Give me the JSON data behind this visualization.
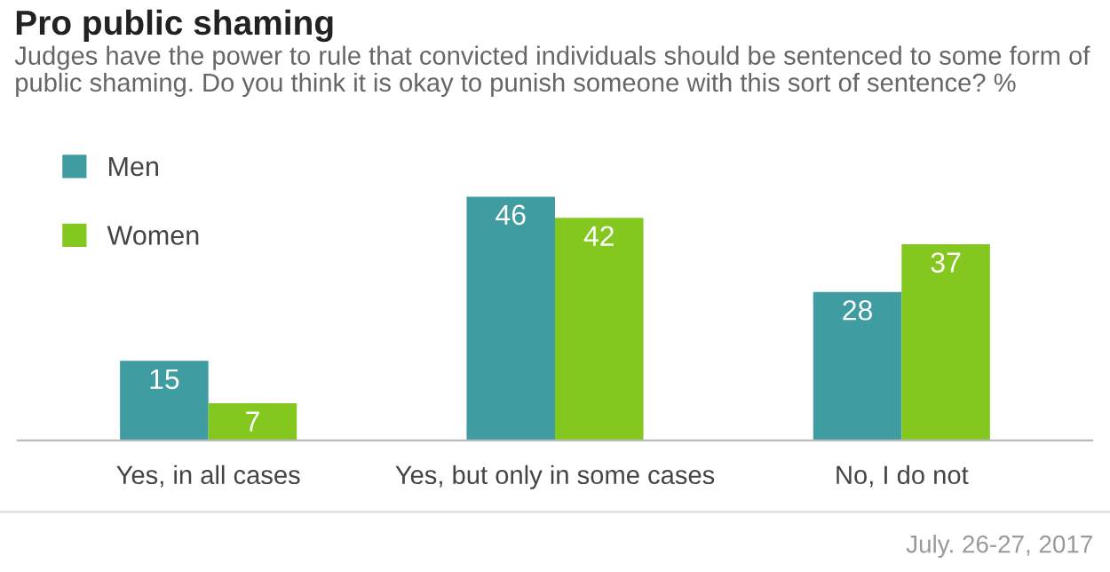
{
  "chart_data": {
    "type": "bar",
    "title": "Pro public shaming",
    "subtitle": "Judges have the power to rule that convicted individuals should be sentenced to some form of public shaming. Do you think it is okay to punish someone with this sort of sentence? %",
    "categories": [
      "Yes, in all cases",
      "Yes, but only in some cases",
      "No, I do not"
    ],
    "series": [
      {
        "name": "Men",
        "color": "#3f9ca1",
        "values": [
          15,
          46,
          28
        ]
      },
      {
        "name": "Women",
        "color": "#84c71f",
        "values": [
          7,
          42,
          37
        ]
      }
    ],
    "data_labels": true,
    "legend": "top left",
    "grid": false,
    "annotations": [
      "July. 26-27, 2017"
    ]
  }
}
